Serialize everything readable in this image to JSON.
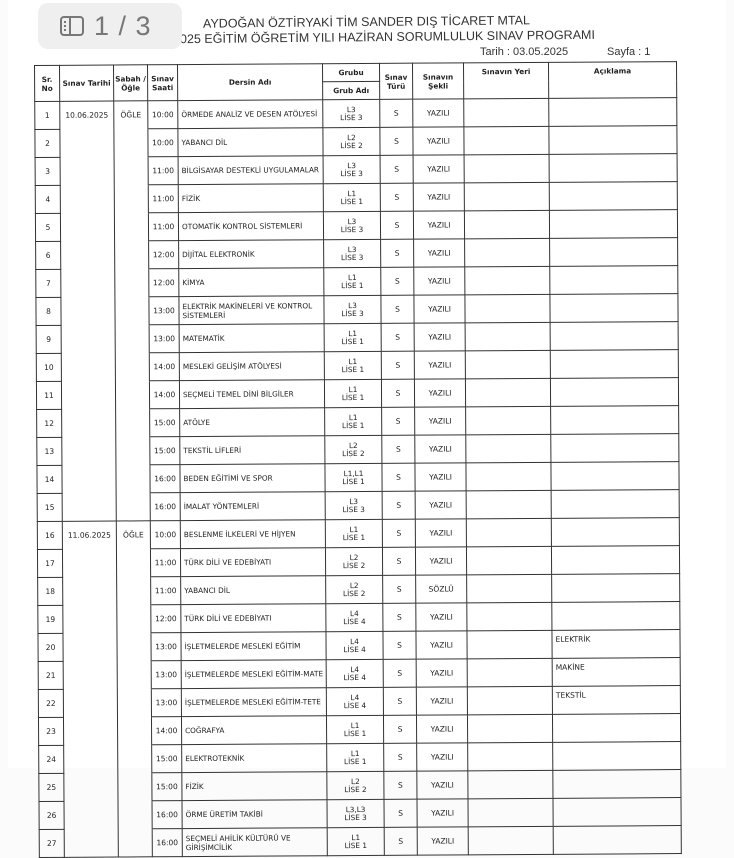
{
  "viewer": {
    "page_indicator": "1 / 3",
    "icon": "sidebar-panel-icon"
  },
  "document": {
    "school": "AYDOĞAN ÖZTİRYAKİ TİM SANDER DIŞ TİCARET MTAL",
    "subtitle": "025 EĞİTİM ÖĞRETİM YILI HAZİRAN SORUMLULUK SINAV PROGRAMI",
    "date_label": "Tarih  :  03.05.2025",
    "page_label": "Sayfa  :   1"
  },
  "table": {
    "headers": {
      "sr": "Sr. No",
      "tarih": "Sınav Tarihi",
      "sabah": "Sabah / Öğle",
      "saat": "Sınav Saati",
      "ders": "Dersin Adı",
      "grubu": "Grubu",
      "grub_adi": "Grub Adı",
      "tur": "Sınav Türü",
      "sekli": "Sınavın Şekli",
      "yeri": "Sınavın Yeri",
      "aciklama": "Açıklama"
    },
    "rows": [
      {
        "no": "1",
        "tarih": "10.06.2025",
        "oturum": "ÖĞLE",
        "saat": "10:00",
        "ders": "ÖRMEDE ANALİZ VE DESEN ATÖLYESİ",
        "grup": "L3",
        "grup_adi": "LİSE 3",
        "tur": "S",
        "sekil": "YAZILI",
        "yer": "",
        "aciklama": ""
      },
      {
        "no": "2",
        "tarih": "",
        "oturum": "",
        "saat": "10:00",
        "ders": "YABANCI DİL",
        "grup": "L2",
        "grup_adi": "LİSE 2",
        "tur": "S",
        "sekil": "YAZILI",
        "yer": "",
        "aciklama": ""
      },
      {
        "no": "3",
        "tarih": "",
        "oturum": "",
        "saat": "11:00",
        "ders": "BİLGİSAYAR DESTEKLİ UYGULAMALAR",
        "grup": "L3",
        "grup_adi": "LİSE 3",
        "tur": "S",
        "sekil": "YAZILI",
        "yer": "",
        "aciklama": ""
      },
      {
        "no": "4",
        "tarih": "",
        "oturum": "",
        "saat": "11:00",
        "ders": "FİZİK",
        "grup": "L1",
        "grup_adi": "LİSE 1",
        "tur": "S",
        "sekil": "YAZILI",
        "yer": "",
        "aciklama": ""
      },
      {
        "no": "5",
        "tarih": "",
        "oturum": "",
        "saat": "11:00",
        "ders": "OTOMATİK KONTROL SİSTEMLERİ",
        "grup": "L3",
        "grup_adi": "LİSE 3",
        "tur": "S",
        "sekil": "YAZILI",
        "yer": "",
        "aciklama": ""
      },
      {
        "no": "6",
        "tarih": "",
        "oturum": "",
        "saat": "12:00",
        "ders": "DİJİTAL ELEKTRONİK",
        "grup": "L3",
        "grup_adi": "LİSE 3",
        "tur": "S",
        "sekil": "YAZILI",
        "yer": "",
        "aciklama": ""
      },
      {
        "no": "7",
        "tarih": "",
        "oturum": "",
        "saat": "12:00",
        "ders": "KİMYA",
        "grup": "L1",
        "grup_adi": "LİSE 1",
        "tur": "S",
        "sekil": "YAZILI",
        "yer": "",
        "aciklama": ""
      },
      {
        "no": "8",
        "tarih": "",
        "oturum": "",
        "saat": "13:00",
        "ders": "ELEKTRİK MAKİNELERİ VE KONTROL SİSTEMLERİ",
        "grup": "L3",
        "grup_adi": "LİSE 3",
        "tur": "S",
        "sekil": "YAZILI",
        "yer": "",
        "aciklama": ""
      },
      {
        "no": "9",
        "tarih": "",
        "oturum": "",
        "saat": "13:00",
        "ders": "MATEMATİK",
        "grup": "L1",
        "grup_adi": "LİSE 1",
        "tur": "S",
        "sekil": "YAZILI",
        "yer": "",
        "aciklama": ""
      },
      {
        "no": "10",
        "tarih": "",
        "oturum": "",
        "saat": "14:00",
        "ders": "MESLEKİ GELİŞİM ATÖLYESİ",
        "grup": "L1",
        "grup_adi": "LİSE 1",
        "tur": "S",
        "sekil": "YAZILI",
        "yer": "",
        "aciklama": ""
      },
      {
        "no": "11",
        "tarih": "",
        "oturum": "",
        "saat": "14:00",
        "ders": "SEÇMELİ TEMEL DİNİ BİLGİLER",
        "grup": "L1",
        "grup_adi": "LİSE 1",
        "tur": "S",
        "sekil": "YAZILI",
        "yer": "",
        "aciklama": ""
      },
      {
        "no": "12",
        "tarih": "",
        "oturum": "",
        "saat": "15:00",
        "ders": "ATÖLYE",
        "grup": "L1",
        "grup_adi": "LİSE 1",
        "tur": "S",
        "sekil": "YAZILI",
        "yer": "",
        "aciklama": ""
      },
      {
        "no": "13",
        "tarih": "",
        "oturum": "",
        "saat": "15:00",
        "ders": "TEKSTİL LİFLERİ",
        "grup": "L2",
        "grup_adi": "LİSE 2",
        "tur": "S",
        "sekil": "YAZILI",
        "yer": "",
        "aciklama": ""
      },
      {
        "no": "14",
        "tarih": "",
        "oturum": "",
        "saat": "16:00",
        "ders": "BEDEN EĞİTİMİ VE SPOR",
        "grup": "L1,L1",
        "grup_adi": "LİSE 1",
        "tur": "S",
        "sekil": "YAZILI",
        "yer": "",
        "aciklama": ""
      },
      {
        "no": "15",
        "tarih": "",
        "oturum": "",
        "saat": "16:00",
        "ders": "İMALAT YÖNTEMLERİ",
        "grup": "L3",
        "grup_adi": "LİSE 3",
        "tur": "S",
        "sekil": "YAZILI",
        "yer": "",
        "aciklama": ""
      },
      {
        "no": "16",
        "tarih": "11.06.2025",
        "oturum": "ÖĞLE",
        "saat": "10:00",
        "ders": "BESLENME İLKELERİ VE HİJYEN",
        "grup": "L1",
        "grup_adi": "LİSE 1",
        "tur": "S",
        "sekil": "YAZILI",
        "yer": "",
        "aciklama": ""
      },
      {
        "no": "17",
        "tarih": "",
        "oturum": "",
        "saat": "11:00",
        "ders": "TÜRK DİLİ VE EDEBİYATI",
        "grup": "L2",
        "grup_adi": "LİSE 2",
        "tur": "S",
        "sekil": "YAZILI",
        "yer": "",
        "aciklama": ""
      },
      {
        "no": "18",
        "tarih": "",
        "oturum": "",
        "saat": "11:00",
        "ders": "YABANCI DİL",
        "grup": "L2",
        "grup_adi": "LİSE 2",
        "tur": "S",
        "sekil": "SÖZLÜ",
        "yer": "",
        "aciklama": ""
      },
      {
        "no": "19",
        "tarih": "",
        "oturum": "",
        "saat": "12:00",
        "ders": "TÜRK DİLİ VE EDEBİYATI",
        "grup": "L4",
        "grup_adi": "LİSE 4",
        "tur": "S",
        "sekil": "YAZILI",
        "yer": "",
        "aciklama": ""
      },
      {
        "no": "20",
        "tarih": "",
        "oturum": "",
        "saat": "13:00",
        "ders": "İŞLETMELERDE MESLEKİ EĞİTİM",
        "grup": "L4",
        "grup_adi": "LİSE 4",
        "tur": "S",
        "sekil": "YAZILI",
        "yer": "",
        "aciklama": "ELEKTRİK"
      },
      {
        "no": "21",
        "tarih": "",
        "oturum": "",
        "saat": "13:00",
        "ders": "İŞLETMELERDE MESLEKİ EĞİTİM-MATE",
        "grup": "L4",
        "grup_adi": "LİSE 4",
        "tur": "S",
        "sekil": "YAZILI",
        "yer": "",
        "aciklama": "MAKİNE"
      },
      {
        "no": "22",
        "tarih": "",
        "oturum": "",
        "saat": "13:00",
        "ders": "İŞLETMELERDE MESLEKİ EĞİTİM-TETE",
        "grup": "L4",
        "grup_adi": "LİSE 4",
        "tur": "S",
        "sekil": "YAZILI",
        "yer": "",
        "aciklama": "TEKSTİL"
      },
      {
        "no": "23",
        "tarih": "",
        "oturum": "",
        "saat": "14:00",
        "ders": "COĞRAFYA",
        "grup": "L1",
        "grup_adi": "LİSE 1",
        "tur": "S",
        "sekil": "YAZILI",
        "yer": "",
        "aciklama": ""
      },
      {
        "no": "24",
        "tarih": "",
        "oturum": "",
        "saat": "15:00",
        "ders": "ELEKTROTEKNİK",
        "grup": "L1",
        "grup_adi": "LİSE 1",
        "tur": "S",
        "sekil": "YAZILI",
        "yer": "",
        "aciklama": ""
      },
      {
        "no": "25",
        "tarih": "",
        "oturum": "",
        "saat": "15:00",
        "ders": "FİZİK",
        "grup": "L2",
        "grup_adi": "LİSE 2",
        "tur": "S",
        "sekil": "YAZILI",
        "yer": "",
        "aciklama": ""
      },
      {
        "no": "26",
        "tarih": "",
        "oturum": "",
        "saat": "16:00",
        "ders": "ÖRME ÜRETİM TAKİBİ",
        "grup": "L3,L3",
        "grup_adi": "LİSE 3",
        "tur": "S",
        "sekil": "YAZILI",
        "yer": "",
        "aciklama": ""
      },
      {
        "no": "27",
        "tarih": "",
        "oturum": "",
        "saat": "16:00",
        "ders": "SEÇMELİ AHİLİK KÜLTÜRÜ VE GİRİŞİMCİLİK",
        "grup": "L1",
        "grup_adi": "LİSE 1",
        "tur": "S",
        "sekil": "YAZILI",
        "yer": "",
        "aciklama": ""
      }
    ]
  }
}
